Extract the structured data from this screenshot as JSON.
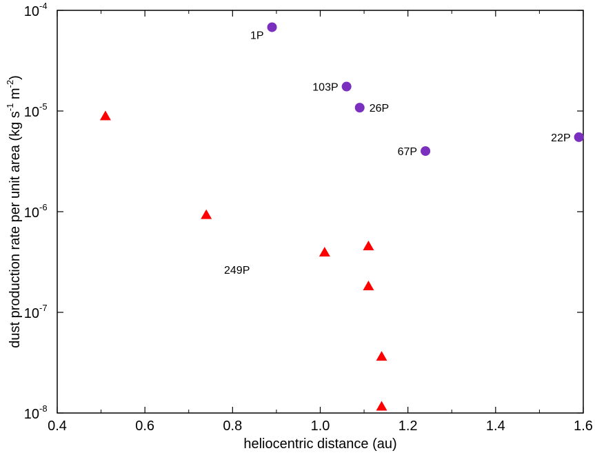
{
  "chart_data": {
    "type": "scatter",
    "xlabel": "heliocentric distance (au)",
    "ylabel": {
      "part1": "dust production rate per unit area (kg s",
      "exp1": "-1",
      "part2": " m",
      "exp2": "-2",
      "part3": ")"
    },
    "xlim": [
      0.4,
      1.6
    ],
    "ylim": [
      1e-08,
      0.0001
    ],
    "yscale": "log",
    "grid": false,
    "x_ticks": [
      {
        "value": 0.4,
        "label": "0.4"
      },
      {
        "value": 0.6,
        "label": "0.6"
      },
      {
        "value": 0.8,
        "label": "0.8"
      },
      {
        "value": 1.0,
        "label": "1.0"
      },
      {
        "value": 1.2,
        "label": "1.2"
      },
      {
        "value": 1.4,
        "label": "1.4"
      },
      {
        "value": 1.6,
        "label": "1.6"
      }
    ],
    "y_ticks": [
      {
        "value": 1e-08,
        "base": "10",
        "exp": "-8"
      },
      {
        "value": 1e-07,
        "base": "10",
        "exp": "-7"
      },
      {
        "value": 1e-06,
        "base": "10",
        "exp": "-6"
      },
      {
        "value": 1e-05,
        "base": "10",
        "exp": "-5"
      },
      {
        "value": 0.0001,
        "base": "10",
        "exp": "-4"
      }
    ],
    "series": [
      {
        "marker": "circle",
        "color": "#7b2fbe",
        "points": [
          {
            "x": 0.89,
            "y": 6.8e-05,
            "label": "1P"
          },
          {
            "x": 1.06,
            "y": 1.75e-05,
            "label": "103P"
          },
          {
            "x": 1.09,
            "y": 1.08e-05,
            "label": "26P"
          },
          {
            "x": 1.24,
            "y": 4e-06,
            "label": "67P"
          },
          {
            "x": 1.59,
            "y": 5.5e-06,
            "label": "22P"
          }
        ]
      },
      {
        "marker": "triangle",
        "color": "#ff0000",
        "points": [
          {
            "x": 0.51,
            "y": 8.8e-06
          },
          {
            "x": 0.74,
            "y": 9.2e-07
          },
          {
            "x": 1.01,
            "y": 3.9e-07
          },
          {
            "x": 1.11,
            "y": 4.5e-07
          },
          {
            "x": 1.11,
            "y": 1.8e-07
          },
          {
            "x": 1.14,
            "y": 3.6e-08
          },
          {
            "x": 1.14,
            "y": 1.15e-08
          }
        ]
      }
    ],
    "annotations": [
      {
        "text": "249P",
        "x": 0.81,
        "y": 2.65e-07
      }
    ]
  }
}
